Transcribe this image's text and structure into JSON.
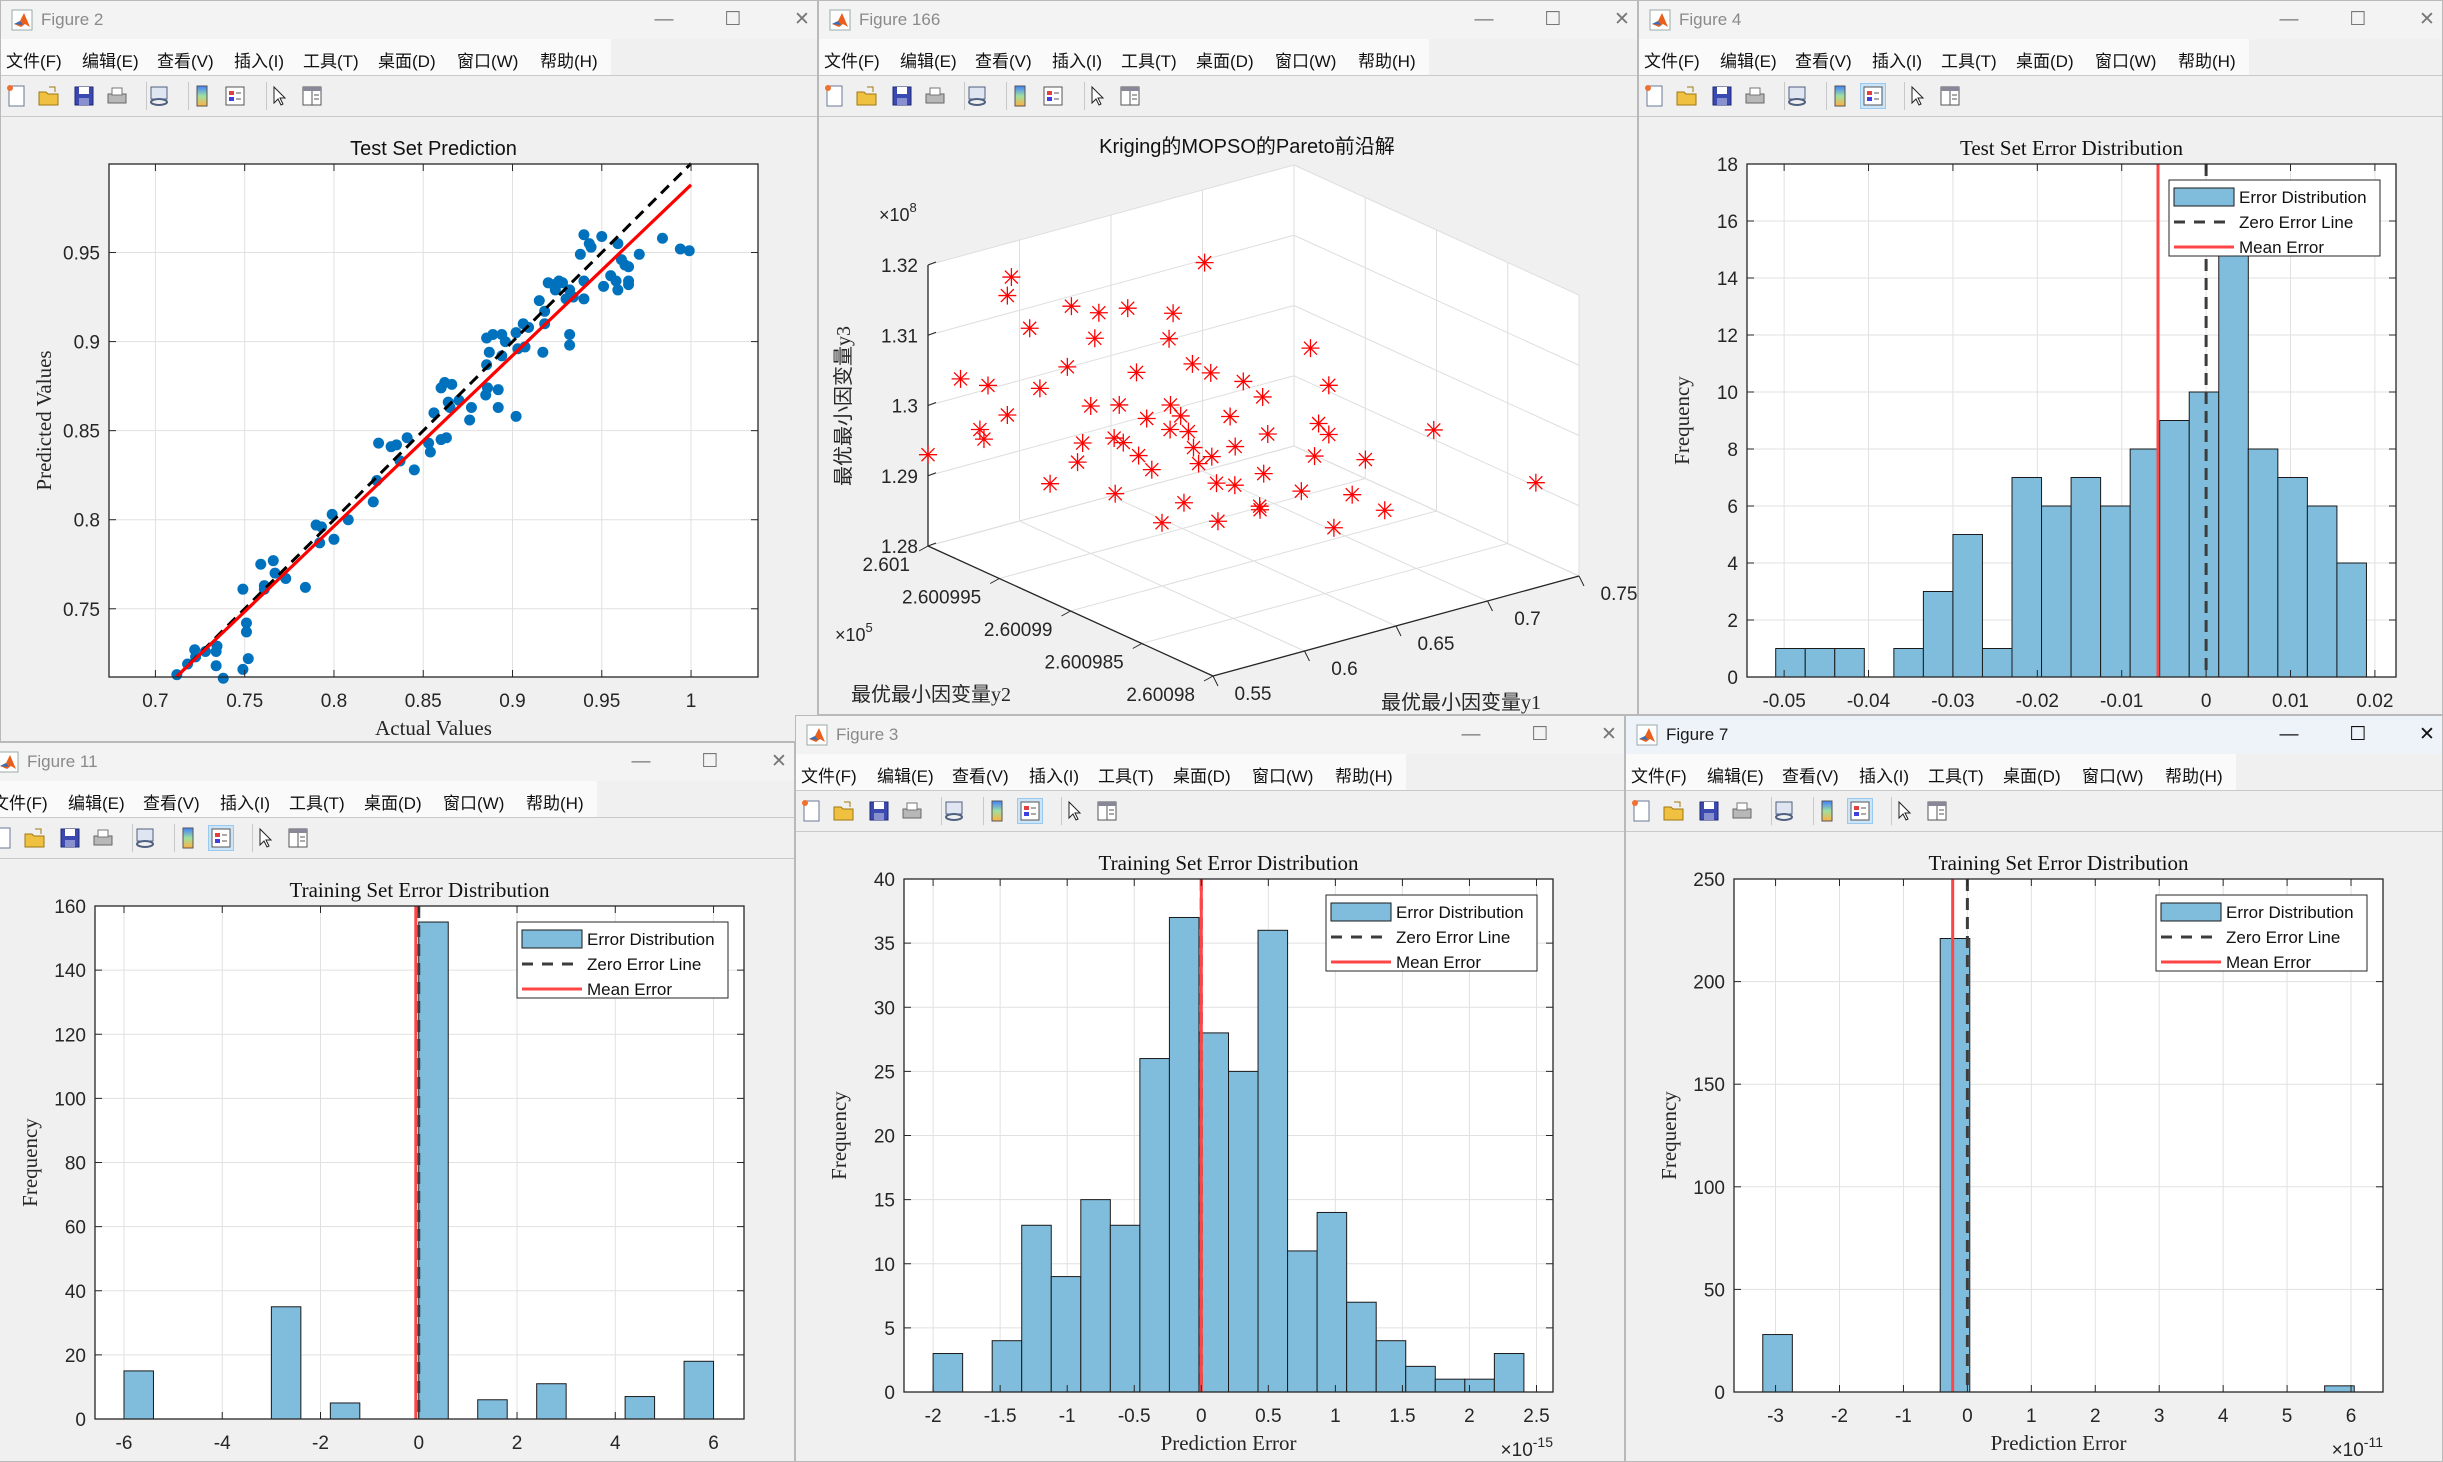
{
  "menu": [
    "文件(F)",
    "编辑(E)",
    "查看(V)",
    "插入(I)",
    "工具(T)",
    "桌面(D)",
    "窗口(W)",
    "帮助(H)"
  ],
  "toolbar_icons": [
    "new-figure-icon",
    "open-file-icon",
    "save-icon",
    "print-icon",
    "link-plot-icon",
    "insert-colorbar-icon",
    "insert-legend-icon",
    "edit-plot-pointer-icon",
    "property-inspector-icon"
  ],
  "window_controls": {
    "minimize": "—",
    "maximize": "☐",
    "close": "✕"
  },
  "colors": {
    "bar_fill": "#80bddc",
    "mean_line": "#ff4545",
    "zero_line": "#3c3c3c",
    "scatter_points": "#0072bd",
    "fit_line": "#ff0000",
    "pareto_marker": "#ff0000"
  },
  "windows": [
    {
      "title": "Figure 2",
      "active": false,
      "legend_button_selected": false,
      "chart": 0
    },
    {
      "title": "Figure 166",
      "active": false,
      "legend_button_selected": false,
      "chart": 1
    },
    {
      "title": "Figure 4",
      "active": false,
      "legend_button_selected": true,
      "chart": 2
    },
    {
      "title": "Figure 11",
      "active": false,
      "legend_button_selected": true,
      "chart": 3
    },
    {
      "title": "Figure 3",
      "active": false,
      "legend_button_selected": true,
      "chart": 4
    },
    {
      "title": "Figure 7",
      "active": true,
      "legend_button_selected": true,
      "chart": 5
    }
  ],
  "chart_data": [
    {
      "type": "scatter",
      "title": "Test Set Prediction",
      "xlabel": "Actual Values",
      "ylabel": "Predicted Values",
      "xlim": [
        0.674,
        1.0375
      ],
      "ylim": [
        0.7117,
        0.9997
      ],
      "xticks": [
        0.7,
        0.75,
        0.8,
        0.85,
        0.9,
        0.95,
        1
      ],
      "xticklabels": [
        "0.7",
        "0.75",
        "0.8",
        "0.85",
        "0.9",
        "0.95",
        "1"
      ],
      "yticks": [
        0.75,
        0.8,
        0.85,
        0.9,
        0.95
      ],
      "yticklabels": [
        "0.75",
        "0.8",
        "0.85",
        "0.9",
        "0.95"
      ],
      "grid": true,
      "reference_line": {
        "x": [
          0.712,
          1.0
        ],
        "y": [
          0.712,
          1.0
        ],
        "style": "dashed",
        "color": "#000000"
      },
      "fit_line": {
        "x": [
          0.712,
          1.0
        ],
        "y": [
          0.712,
          0.988
        ],
        "style": "solid",
        "color": "#ff0000"
      },
      "points": [
        [
          0.712,
          0.713
        ],
        [
          0.718,
          0.719
        ],
        [
          0.722,
          0.727
        ],
        [
          0.7225,
          0.723
        ],
        [
          0.728,
          0.726
        ],
        [
          0.734,
          0.718
        ],
        [
          0.7345,
          0.729
        ],
        [
          0.734,
          0.726
        ],
        [
          0.738,
          0.711
        ],
        [
          0.749,
          0.761
        ],
        [
          0.749,
          0.716
        ],
        [
          0.751,
          0.742
        ],
        [
          0.751,
          0.737
        ],
        [
          0.752,
          0.722
        ],
        [
          0.759,
          0.775
        ],
        [
          0.761,
          0.763
        ],
        [
          0.761,
          0.761
        ],
        [
          0.766,
          0.777
        ],
        [
          0.767,
          0.77
        ],
        [
          0.773,
          0.767
        ],
        [
          0.784,
          0.762
        ],
        [
          0.79,
          0.797
        ],
        [
          0.793,
          0.796
        ],
        [
          0.792,
          0.787
        ],
        [
          0.799,
          0.803
        ],
        [
          0.8,
          0.789
        ],
        [
          0.808,
          0.8
        ],
        [
          0.822,
          0.81
        ],
        [
          0.824,
          0.822
        ],
        [
          0.825,
          0.843
        ],
        [
          0.832,
          0.841
        ],
        [
          0.835,
          0.842
        ],
        [
          0.837,
          0.833
        ],
        [
          0.841,
          0.846
        ],
        [
          0.845,
          0.828
        ],
        [
          0.853,
          0.843
        ],
        [
          0.854,
          0.838
        ],
        [
          0.856,
          0.86
        ],
        [
          0.86,
          0.845
        ],
        [
          0.863,
          0.846
        ],
        [
          0.86,
          0.874
        ],
        [
          0.862,
          0.877
        ],
        [
          0.866,
          0.876
        ],
        [
          0.864,
          0.866
        ],
        [
          0.865,
          0.863
        ],
        [
          0.87,
          0.867
        ],
        [
          0.876,
          0.856
        ],
        [
          0.877,
          0.863
        ],
        [
          0.885,
          0.87
        ],
        [
          0.886,
          0.874
        ],
        [
          0.8855,
          0.887
        ],
        [
          0.887,
          0.894
        ],
        [
          0.8855,
          0.902
        ],
        [
          0.889,
          0.904
        ],
        [
          0.892,
          0.873
        ],
        [
          0.892,
          0.863
        ],
        [
          0.894,
          0.892
        ],
        [
          0.894,
          0.904
        ],
        [
          0.896,
          0.9
        ],
        [
          0.902,
          0.905
        ],
        [
          0.902,
          0.858
        ],
        [
          0.903,
          0.896
        ],
        [
          0.906,
          0.91
        ],
        [
          0.907,
          0.897
        ],
        [
          0.909,
          0.908
        ],
        [
          0.915,
          0.923
        ],
        [
          0.917,
          0.894
        ],
        [
          0.918,
          0.917
        ],
        [
          0.918,
          0.91
        ],
        [
          0.92,
          0.933
        ],
        [
          0.923,
          0.932
        ],
        [
          0.924,
          0.929
        ],
        [
          0.926,
          0.934
        ],
        [
          0.928,
          0.933
        ],
        [
          0.93,
          0.924
        ],
        [
          0.932,
          0.904
        ],
        [
          0.932,
          0.898
        ],
        [
          0.932,
          0.929
        ],
        [
          0.934,
          0.925
        ],
        [
          0.938,
          0.949
        ],
        [
          0.94,
          0.924
        ],
        [
          0.94,
          0.96
        ],
        [
          0.94,
          0.934
        ],
        [
          0.943,
          0.955
        ],
        [
          0.944,
          0.953
        ],
        [
          0.95,
          0.959
        ],
        [
          0.951,
          0.931
        ],
        [
          0.955,
          0.937
        ],
        [
          0.958,
          0.934
        ],
        [
          0.959,
          0.929
        ],
        [
          0.959,
          0.955
        ],
        [
          0.961,
          0.946
        ],
        [
          0.963,
          0.943
        ],
        [
          0.965,
          0.942
        ],
        [
          0.965,
          0.934
        ],
        [
          0.965,
          0.932
        ],
        [
          0.971,
          0.949
        ],
        [
          0.984,
          0.958
        ],
        [
          0.994,
          0.952
        ],
        [
          0.999,
          0.951
        ]
      ]
    },
    {
      "type": "scatter3d",
      "title": "Kriging的MOPSO的Pareto前沿解",
      "xlabel": "最优最小因变量y1",
      "ylabel": "最优最小因变量y2",
      "zlabel": "最优最小因变量y3",
      "xlim": [
        0.55,
        0.75
      ],
      "ylim": [
        2.60098,
        2.601
      ],
      "zlim": [
        1.28,
        1.32
      ],
      "xticks": [
        0.55,
        0.6,
        0.65,
        0.7,
        0.75
      ],
      "xticklabels": [
        "0.55",
        "0.6",
        "0.65",
        "0.7",
        "0.75"
      ],
      "yticks": [
        2.60098,
        2.600985,
        2.60099,
        2.600995,
        2.601
      ],
      "yticklabels": [
        "2.60098",
        "2.600985",
        "2.60099",
        "2.600995",
        "2.601"
      ],
      "zticks": [
        1.28,
        1.29,
        1.3,
        1.31,
        1.32
      ],
      "zticklabels": [
        "1.28",
        "1.29",
        "1.3",
        "1.31",
        "1.32"
      ],
      "y_multiplier": {
        "base": "×10",
        "exponent": "5"
      },
      "z_multiplier": {
        "base": "×10",
        "exponent": "8"
      },
      "marker": "asterisk",
      "grid": true,
      "points": [
        [
          0.55,
          2.601,
          1.293
        ],
        [
          0.742,
          2.600982,
          1.292
        ],
        [
          0.694,
          2.600983,
          1.302
        ],
        [
          0.66,
          2.600986,
          1.301
        ],
        [
          0.66,
          2.600986,
          1.308
        ],
        [
          0.65,
          2.600986,
          1.314
        ],
        [
          0.58,
          2.600998,
          1.318
        ],
        [
          0.67,
          2.600996,
          1.3155
        ],
        [
          0.57,
          2.600997,
          1.317
        ],
        [
          0.62,
          2.600992,
          1.299
        ],
        [
          0.625,
          2.600991,
          1.297
        ],
        [
          0.63,
          2.600992,
          1.298
        ],
        [
          0.615,
          2.600993,
          1.3
        ],
        [
          0.62,
          2.60099,
          1.296
        ],
        [
          0.635,
          2.600991,
          1.295
        ],
        [
          0.61,
          2.600992,
          1.294
        ],
        [
          0.64,
          2.60099,
          1.297
        ],
        [
          0.628,
          2.600993,
          1.301
        ],
        [
          0.618,
          2.600991,
          1.302
        ],
        [
          0.632,
          2.600989,
          1.293
        ],
        [
          0.645,
          2.600991,
          1.3
        ],
        [
          0.605,
          2.600994,
          1.297
        ],
        [
          0.625,
          2.600995,
          1.304
        ],
        [
          0.612,
          2.60099,
          1.291
        ],
        [
          0.64,
          2.600988,
          1.295
        ],
        [
          0.65,
          2.600989,
          1.299
        ],
        [
          0.655,
          2.60099,
          1.303
        ],
        [
          0.6,
          2.600995,
          1.301
        ],
        [
          0.595,
          2.600996,
          1.306
        ],
        [
          0.61,
          2.600996,
          1.309
        ],
        [
          0.62,
          2.600997,
          1.311
        ],
        [
          0.605,
          2.600997,
          1.313
        ],
        [
          0.59,
          2.600998,
          1.31
        ],
        [
          0.58,
          2.600996,
          1.304
        ],
        [
          0.57,
          2.600997,
          1.3
        ],
        [
          0.575,
          2.600999,
          1.302
        ],
        [
          0.565,
          2.600998,
          1.296
        ],
        [
          0.585,
          2.600994,
          1.295
        ],
        [
          0.59,
          2.600992,
          1.292
        ],
        [
          0.6,
          2.60099,
          1.289
        ],
        [
          0.615,
          2.600988,
          1.29
        ],
        [
          0.63,
          2.600987,
          1.292
        ],
        [
          0.645,
          2.600986,
          1.294
        ],
        [
          0.66,
          2.600987,
          1.297
        ],
        [
          0.67,
          2.600988,
          1.3
        ],
        [
          0.665,
          2.600985,
          1.293
        ],
        [
          0.68,
          2.600986,
          1.296
        ],
        [
          0.675,
          2.600984,
          1.291
        ],
        [
          0.655,
          2.600985,
          1.289
        ],
        [
          0.64,
          2.600993,
          1.306
        ],
        [
          0.635,
          2.600994,
          1.309
        ],
        [
          0.628,
          2.600996,
          1.312
        ],
        [
          0.65,
          2.600993,
          1.304
        ],
        [
          0.645,
          2.600995,
          1.311
        ],
        [
          0.66,
          2.600992,
          1.303
        ],
        [
          0.6,
          2.600993,
          1.303
        ],
        [
          0.595,
          2.600991,
          1.298
        ],
        [
          0.58,
          2.600993,
          1.299
        ],
        [
          0.61,
          2.600994,
          1.296
        ],
        [
          0.622,
          2.600989,
          1.294
        ],
        [
          0.638,
          2.600988,
          1.29
        ],
        [
          0.57,
          2.600994,
          1.293
        ],
        [
          0.56,
          2.600999,
          1.304
        ],
        [
          0.555,
          2.600997,
          1.299
        ]
      ]
    },
    {
      "type": "histogram",
      "title": "Test Set Error Distribution",
      "xlabel": "",
      "ylabel": "Frequency",
      "xlim": [
        -0.0544,
        0.0225
      ],
      "ylim": [
        0,
        18
      ],
      "xticks": [
        -0.05,
        -0.04,
        -0.03,
        -0.02,
        -0.01,
        0,
        0.01,
        0.02
      ],
      "xticklabels": [
        "-0.05",
        "-0.04",
        "-0.03",
        "-0.02",
        "-0.01",
        "0",
        "0.01",
        "0.02"
      ],
      "yticks": [
        0,
        2,
        4,
        6,
        8,
        10,
        12,
        14,
        16,
        18
      ],
      "yticklabels": [
        "0",
        "2",
        "4",
        "6",
        "8",
        "10",
        "12",
        "14",
        "16",
        "18"
      ],
      "bin_start": -0.051,
      "bin_width": 0.0035,
      "counts": [
        1,
        1,
        1,
        0,
        1,
        3,
        5,
        1,
        7,
        6,
        7,
        6,
        8,
        9,
        10,
        16,
        8,
        7,
        6,
        4
      ],
      "mean_error": -0.0057,
      "zero_line": 0,
      "grid": true,
      "legend": [
        "Error Distribution",
        "Zero Error Line",
        "Mean Error"
      ],
      "legend_placement": "top-right"
    },
    {
      "type": "histogram",
      "title": "Training Set Error Distribution",
      "xlabel": "",
      "ylabel": "Frequency",
      "xlim": [
        -6.59,
        6.62
      ],
      "ylim": [
        0,
        160
      ],
      "xticks": [
        -6,
        -4,
        -2,
        0,
        2,
        4,
        6
      ],
      "xticklabels": [
        "-6",
        "-4",
        "-2",
        "0",
        "2",
        "4",
        "6"
      ],
      "yticks": [
        0,
        20,
        40,
        60,
        80,
        100,
        120,
        140,
        160
      ],
      "yticklabels": [
        "0",
        "20",
        "40",
        "60",
        "80",
        "100",
        "120",
        "140",
        "160"
      ],
      "bin_start": -6.0,
      "bin_width": 0.6,
      "counts": [
        15,
        0,
        0,
        0,
        0,
        35,
        0,
        5,
        0,
        0,
        155,
        0,
        6,
        0,
        11,
        0,
        0,
        7,
        0,
        18
      ],
      "mean_error": -0.06,
      "zero_line": 0,
      "grid": true,
      "legend": [
        "Error Distribution",
        "Zero Error Line",
        "Mean Error"
      ],
      "legend_placement": "top-right"
    },
    {
      "type": "histogram",
      "title": "Training Set Error Distribution",
      "xlabel": "Prediction Error",
      "ylabel": "Frequency",
      "xlim": [
        -2.217,
        2.623
      ],
      "ylim": [
        0,
        40
      ],
      "xticks": [
        -2,
        -1.5,
        -1,
        -0.5,
        0,
        0.5,
        1,
        1.5,
        2,
        2.5
      ],
      "xticklabels": [
        "-2",
        "-1.5",
        "-1",
        "-0.5",
        "0",
        "0.5",
        "1",
        "1.5",
        "2",
        "2.5"
      ],
      "yticks": [
        0,
        5,
        10,
        15,
        20,
        25,
        30,
        35,
        40
      ],
      "yticklabels": [
        "0",
        "5",
        "10",
        "15",
        "20",
        "25",
        "30",
        "35",
        "40"
      ],
      "x_multiplier": {
        "base": "×10",
        "exponent": "-15"
      },
      "bin_start": -2.0,
      "bin_width": 0.2203,
      "counts": [
        3,
        0,
        4,
        13,
        9,
        15,
        13,
        26,
        37,
        28,
        25,
        36,
        11,
        14,
        7,
        4,
        2,
        1,
        1,
        3
      ],
      "mean_error": 0.0,
      "zero_line": 0,
      "grid": true,
      "legend": [
        "Error Distribution",
        "Zero Error Line",
        "Mean Error"
      ],
      "legend_placement": "top-right"
    },
    {
      "type": "histogram",
      "title": "Training Set Error Distribution",
      "xlabel": "Prediction Error",
      "ylabel": "Frequency",
      "xlim": [
        -3.65,
        6.5
      ],
      "ylim": [
        0,
        250
      ],
      "xticks": [
        -3,
        -2,
        -1,
        0,
        1,
        2,
        3,
        4,
        5,
        6
      ],
      "xticklabels": [
        "-3",
        "-2",
        "-1",
        "0",
        "1",
        "2",
        "3",
        "4",
        "5",
        "6"
      ],
      "yticks": [
        0,
        50,
        100,
        150,
        200,
        250
      ],
      "yticklabels": [
        "0",
        "50",
        "100",
        "150",
        "200",
        "250"
      ],
      "x_multiplier": {
        "base": "×10",
        "exponent": "-11"
      },
      "bin_start": -3.2,
      "bin_width": 0.4625,
      "counts": [
        28,
        0,
        0,
        0,
        0,
        0,
        221,
        0,
        0,
        0,
        0,
        0,
        0,
        0,
        0,
        0,
        0,
        0,
        0,
        3
      ],
      "mean_error": -0.23,
      "zero_line": 0,
      "grid": true,
      "legend": [
        "Error Distribution",
        "Zero Error Line",
        "Mean Error"
      ],
      "legend_placement": "top-right"
    }
  ]
}
